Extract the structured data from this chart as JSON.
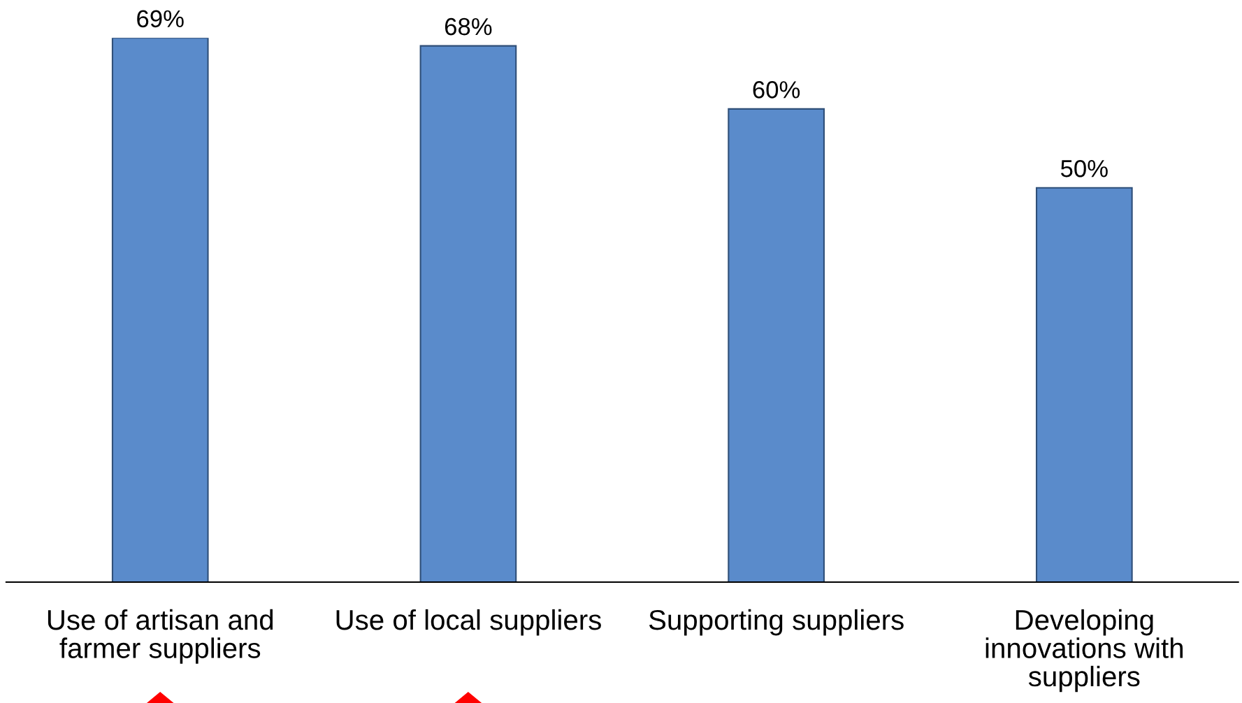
{
  "chart_data": {
    "type": "bar",
    "categories": [
      "Use of artisan and\nfarmer suppliers",
      "Use of local suppliers",
      "Supporting suppliers",
      "Developing\ninnovations with\nsuppliers"
    ],
    "values": [
      69,
      68,
      60,
      50
    ],
    "value_labels": [
      "69%",
      "68%",
      "60%",
      "50%"
    ],
    "color": "#5a8bcb"
  }
}
